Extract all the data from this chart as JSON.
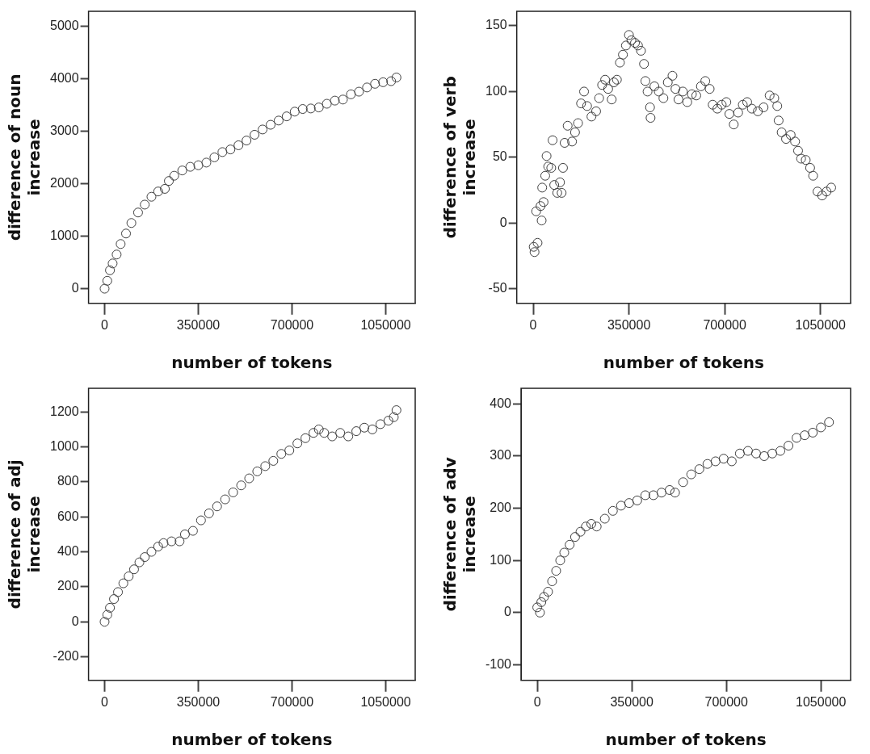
{
  "chart_data": [
    {
      "type": "scatter",
      "xlabel": "number of tokens",
      "ylabel": "difference of noun increase",
      "marker": "circle",
      "grid": false,
      "xlim": [
        -60000,
        1160000
      ],
      "xticks": [
        0,
        350000,
        700000,
        1050000
      ],
      "ylim": [
        -280,
        5280
      ],
      "yticks": [
        0,
        1000,
        2000,
        3000,
        4000,
        5000
      ],
      "series": [
        {
          "color": "#404040",
          "x": [
            0,
            10000,
            20000,
            30000,
            45000,
            60000,
            80000,
            100000,
            125000,
            150000,
            175000,
            200000,
            225000,
            240000,
            260000,
            290000,
            320000,
            350000,
            380000,
            410000,
            440000,
            470000,
            500000,
            530000,
            560000,
            590000,
            620000,
            650000,
            680000,
            710000,
            740000,
            770000,
            800000,
            830000,
            860000,
            890000,
            920000,
            950000,
            980000,
            1010000,
            1040000,
            1070000,
            1090000
          ],
          "values": [
            0,
            150,
            350,
            480,
            650,
            850,
            1050,
            1250,
            1450,
            1600,
            1750,
            1850,
            1900,
            2050,
            2150,
            2250,
            2320,
            2350,
            2400,
            2500,
            2600,
            2650,
            2730,
            2820,
            2930,
            3030,
            3120,
            3200,
            3280,
            3370,
            3420,
            3430,
            3450,
            3520,
            3580,
            3600,
            3700,
            3750,
            3830,
            3900,
            3930,
            3950,
            4020
          ]
        }
      ]
    },
    {
      "type": "scatter",
      "xlabel": "number of tokens",
      "ylabel": "difference of verb increase",
      "marker": "circle",
      "grid": false,
      "xlim": [
        -60000,
        1160000
      ],
      "xticks": [
        0,
        350000,
        700000,
        1050000
      ],
      "ylim": [
        -61,
        161
      ],
      "yticks": [
        -50,
        0,
        50,
        100,
        150
      ],
      "series": [
        {
          "color": "#404040",
          "x": [
            2000,
            5000,
            16000,
            11000,
            27000,
            31000,
            38000,
            33000,
            44000,
            49000,
            55000,
            71000,
            66000,
            77000,
            88000,
            98000,
            109000,
            104000,
            115000,
            126000,
            142000,
            153000,
            164000,
            175000,
            186000,
            197000,
            213000,
            230000,
            241000,
            252000,
            263000,
            274000,
            287000,
            295000,
            306000,
            317000,
            328000,
            339000,
            350000,
            359000,
            372000,
            383000,
            394000,
            405000,
            410000,
            418000,
            427000,
            429000,
            443000,
            459000,
            476000,
            492000,
            509000,
            520000,
            531000,
            547000,
            563000,
            580000,
            596000,
            613000,
            629000,
            645000,
            656000,
            673000,
            689000,
            706000,
            717000,
            733000,
            749000,
            766000,
            782000,
            799000,
            821000,
            842000,
            864000,
            881000,
            892000,
            897000,
            908000,
            924000,
            941000,
            957000,
            968000,
            979000,
            996000,
            1012000,
            1023000,
            1039000,
            1056000,
            1072000,
            1089000
          ],
          "values": [
            -18,
            -22,
            -15,
            9,
            13,
            2,
            16,
            27,
            36,
            51,
            43,
            63,
            42,
            29,
            23,
            31,
            42,
            23,
            61,
            74,
            62,
            69,
            76,
            91,
            100,
            89,
            81,
            85,
            95,
            105,
            109,
            102,
            94,
            107,
            109,
            122,
            128,
            135,
            143,
            139,
            137,
            135,
            131,
            121,
            108,
            100,
            88,
            80,
            104,
            100,
            95,
            107,
            112,
            102,
            94,
            100,
            92,
            98,
            97,
            104,
            108,
            102,
            90,
            87,
            90,
            92,
            83,
            75,
            84,
            90,
            92,
            87,
            85,
            88,
            97,
            95,
            89,
            78,
            69,
            64,
            67,
            62,
            55,
            49,
            48,
            42,
            36,
            24,
            21,
            24,
            27
          ]
        }
      ]
    },
    {
      "type": "scatter",
      "xlabel": "number of tokens",
      "ylabel": "difference of adj increase",
      "marker": "circle",
      "grid": false,
      "xlim": [
        -60000,
        1160000
      ],
      "xticks": [
        0,
        350000,
        700000,
        1050000
      ],
      "ylim": [
        -335,
        1335
      ],
      "yticks": [
        -200,
        0,
        200,
        400,
        600,
        800,
        1000,
        1200
      ],
      "series": [
        {
          "color": "#404040",
          "x": [
            0,
            10000,
            20000,
            35000,
            50000,
            70000,
            90000,
            110000,
            130000,
            150000,
            175000,
            200000,
            220000,
            250000,
            280000,
            300000,
            330000,
            360000,
            390000,
            420000,
            450000,
            480000,
            510000,
            540000,
            570000,
            600000,
            630000,
            660000,
            690000,
            720000,
            750000,
            780000,
            800000,
            820000,
            850000,
            880000,
            910000,
            940000,
            970000,
            1000000,
            1030000,
            1060000,
            1080000,
            1090000
          ],
          "values": [
            0,
            40,
            80,
            130,
            170,
            220,
            260,
            300,
            340,
            370,
            400,
            430,
            450,
            460,
            460,
            500,
            520,
            580,
            620,
            660,
            700,
            740,
            780,
            820,
            860,
            890,
            920,
            960,
            980,
            1020,
            1050,
            1080,
            1100,
            1080,
            1060,
            1080,
            1060,
            1090,
            1110,
            1100,
            1130,
            1150,
            1170,
            1210
          ]
        }
      ]
    },
    {
      "type": "scatter",
      "xlabel": "number of tokens",
      "ylabel": "difference of adv increase",
      "marker": "circle",
      "grid": false,
      "xlim": [
        -60000,
        1160000
      ],
      "xticks": [
        0,
        350000,
        700000,
        1050000
      ],
      "ylim": [
        -130,
        430
      ],
      "yticks": [
        -100,
        0,
        100,
        200,
        300,
        400
      ],
      "series": [
        {
          "color": "#404040",
          "x": [
            0,
            10000,
            15000,
            25000,
            40000,
            55000,
            70000,
            85000,
            100000,
            120000,
            140000,
            160000,
            180000,
            200000,
            220000,
            250000,
            280000,
            310000,
            340000,
            370000,
            400000,
            430000,
            460000,
            490000,
            510000,
            540000,
            570000,
            600000,
            630000,
            660000,
            690000,
            720000,
            750000,
            780000,
            810000,
            840000,
            870000,
            900000,
            930000,
            960000,
            990000,
            1020000,
            1050000,
            1080000
          ],
          "values": [
            10,
            0,
            20,
            30,
            40,
            60,
            80,
            100,
            115,
            130,
            145,
            155,
            165,
            170,
            165,
            180,
            195,
            205,
            210,
            215,
            225,
            225,
            230,
            235,
            230,
            250,
            265,
            275,
            285,
            290,
            295,
            290,
            305,
            310,
            305,
            300,
            305,
            310,
            320,
            335,
            340,
            345,
            355,
            365
          ]
        }
      ]
    }
  ]
}
